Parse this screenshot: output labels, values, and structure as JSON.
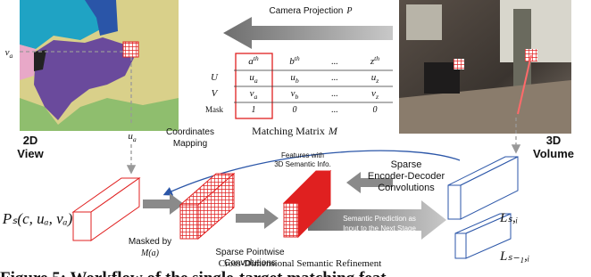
{
  "projection": {
    "text": "Camera Projection",
    "symbol": "P"
  },
  "image_2d": {
    "row_label": {
      "base": "v",
      "sub": "a"
    },
    "col_label": {
      "base": "u",
      "sub": "a"
    },
    "caption_top": "2D",
    "caption_bottom": "View"
  },
  "image_3d": {
    "caption_top": "3D",
    "caption_bottom": "Volume"
  },
  "table": {
    "header": [
      {
        "base": "a",
        "sup": "th"
      },
      {
        "base": "b",
        "sup": "th"
      },
      "...",
      {
        "base": "z",
        "sup": "th"
      }
    ],
    "rows": [
      {
        "label": "U",
        "cells": [
          {
            "base": "u",
            "sub": "a"
          },
          {
            "base": "u",
            "sub": "b"
          },
          "...",
          {
            "base": "u",
            "sub": "z"
          }
        ]
      },
      {
        "label": "V",
        "cells": [
          {
            "base": "v",
            "sub": "a"
          },
          {
            "base": "v",
            "sub": "b"
          },
          "...",
          {
            "base": "v",
            "sub": "z"
          }
        ]
      },
      {
        "label": "Mask",
        "cells": [
          "1",
          "0",
          "...",
          "0"
        ]
      }
    ],
    "caption": {
      "text": "Matching Matrix",
      "symbol": "M"
    }
  },
  "workflow": {
    "input_label": "Pₛ(c, uₐ, vₐ)",
    "mapping": [
      "Coordinates",
      "Mapping"
    ],
    "masked": [
      "Masked by",
      "M(a)"
    ],
    "pointwise": [
      "Sparse Pointwise",
      "Convolutions"
    ],
    "features": [
      "Features with",
      "3D Semantic Info."
    ],
    "encoder": [
      "Sparse",
      "Encoder-Decoder",
      "Convolutions"
    ],
    "prediction": [
      "Semantic Prediction as",
      "Input to the Next Stage"
    ],
    "volume_label": "Lₛ,ᵢ",
    "prev_volume_label": "Lₛ₋₁,ᵢ",
    "title": "Cross-Dimensional Semantic Refinement"
  },
  "figure_caption": "Figure 5: Workflow of the single-target matching feat"
}
